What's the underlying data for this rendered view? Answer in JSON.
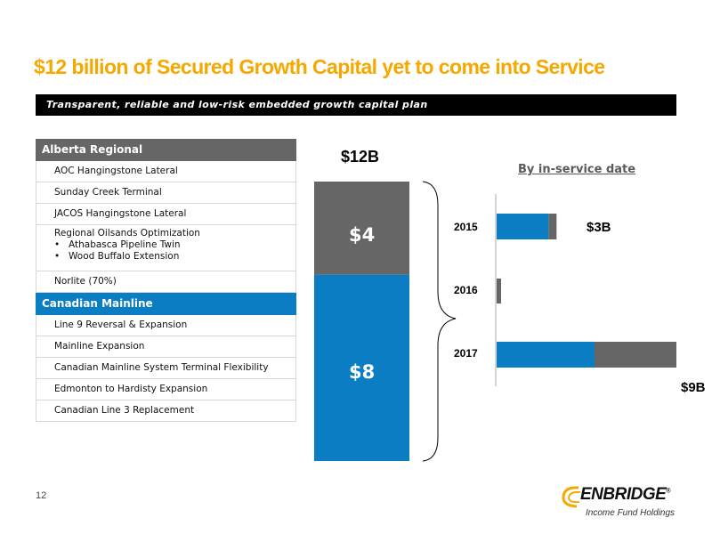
{
  "title": "$12 billion of Secured Growth Capital yet to come into Service",
  "subtitle": "Transparent, reliable and low-risk embedded growth capital plan",
  "colors": {
    "accent": "#f5a800",
    "section_gray": "#666666",
    "section_blue": "#0a7dc3",
    "bar_gray": "#666666",
    "bar_blue": "#0a7dc3"
  },
  "projects": {
    "alberta": {
      "heading": "Alberta Regional",
      "items": [
        "AOC Hangingstone Lateral",
        "Sunday Creek Terminal",
        "JACOS Hangingstone Lateral"
      ],
      "optimization": {
        "label": "Regional Oilsands Optimization",
        "sub": [
          "Athabasca Pipeline Twin",
          "Wood Buffalo Extension"
        ]
      },
      "last": "Norlite (70%)"
    },
    "mainline": {
      "heading": "Canadian Mainline",
      "items": [
        "Line 9 Reversal & Expansion",
        "Mainline Expansion",
        "Canadian Mainline System Terminal Flexibility",
        "Edmonton to Hardisty Expansion",
        "Canadian Line 3 Replacement"
      ]
    }
  },
  "chart_data": [
    {
      "type": "bar",
      "title": "$12B",
      "categories": [
        "Canadian Mainline",
        "Alberta Regional"
      ],
      "values": [
        8,
        4
      ],
      "labels": [
        "$8",
        "$4"
      ],
      "stacked": true,
      "colors": [
        "#0a7dc3",
        "#666666"
      ]
    },
    {
      "type": "bar",
      "orientation": "horizontal",
      "title": "By in-service date",
      "categories": [
        "2015",
        "2016",
        "2017"
      ],
      "series": [
        {
          "values": [
            2.6,
            0.0,
            4.9
          ],
          "color": "#0a7dc3"
        },
        {
          "values": [
            0.4,
            0.2,
            4.1
          ],
          "color": "#666666"
        }
      ],
      "labels": [
        "$3B",
        "",
        "$9B"
      ],
      "xlim": [
        0,
        9
      ]
    }
  ],
  "page_number": "12",
  "logo": {
    "word": "ENBRIDGE",
    "mark": "®",
    "sub": "Income Fund Holdings"
  }
}
